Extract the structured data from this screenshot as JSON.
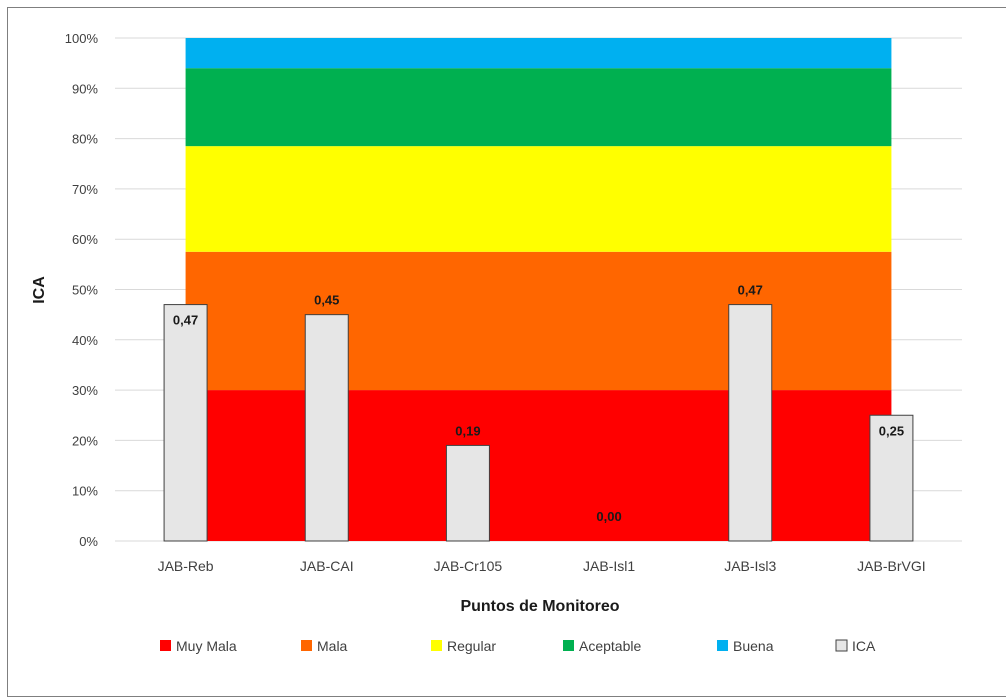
{
  "chart_data": {
    "type": "bar",
    "xlabel": "Puntos de Monitoreo",
    "ylabel": "ICA",
    "ylim": [
      0,
      1
    ],
    "y_ticks": [
      "0%",
      "10%",
      "20%",
      "30%",
      "40%",
      "50%",
      "60%",
      "70%",
      "80%",
      "90%",
      "100%"
    ],
    "categories": [
      "JAB-Reb",
      "JAB-CAI",
      "JAB-Cr105",
      "JAB-Isl1",
      "JAB-Isl3",
      "JAB-BrVGI"
    ],
    "bands": [
      {
        "name": "Muy Mala",
        "from": 0.0,
        "to": 0.3,
        "color": "#ff0000"
      },
      {
        "name": "Mala",
        "from": 0.3,
        "to": 0.575,
        "color": "#ff6600"
      },
      {
        "name": "Regular",
        "from": 0.575,
        "to": 0.785,
        "color": "#ffff00"
      },
      {
        "name": "Aceptable",
        "from": 0.785,
        "to": 0.94,
        "color": "#00b050"
      },
      {
        "name": "Buena",
        "from": 0.94,
        "to": 1.0,
        "color": "#00b0f0"
      }
    ],
    "series": [
      {
        "name": "ICA",
        "values": [
          0.47,
          0.45,
          0.19,
          0.0,
          0.47,
          0.25
        ],
        "labels": [
          "0,47",
          "0,45",
          "0,19",
          "0,00",
          "0,47",
          "0,25"
        ],
        "color": "#e6e6e6"
      }
    ],
    "legend": [
      "Muy Mala",
      "Mala",
      "Regular",
      "Aceptable",
      "Buena",
      "ICA"
    ],
    "legend_position": "bottom",
    "grid": true
  }
}
